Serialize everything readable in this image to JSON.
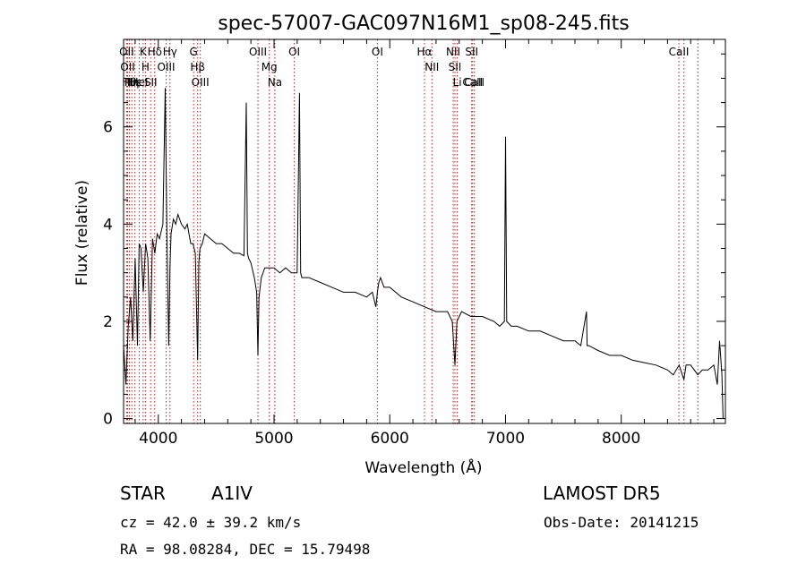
{
  "chart_data": {
    "type": "line",
    "title": "spec-57007-GAC097N16M1_sp08-245.fits",
    "xlabel": "Wavelength (Å)",
    "ylabel": "Flux (relative)",
    "xlim": [
      3700,
      8900
    ],
    "ylim": [
      -0.1,
      7.8
    ],
    "x_ticks": [
      4000,
      5000,
      6000,
      7000,
      8000
    ],
    "x_tick_labels": [
      "4000",
      "5000",
      "6000",
      "7000",
      "8000"
    ],
    "y_ticks": [
      0,
      2,
      4,
      6
    ],
    "y_tick_labels": [
      "0",
      "2",
      "4",
      "6"
    ],
    "grid": false,
    "series": [
      {
        "x": [
          3700,
          3720,
          3740,
          3760,
          3780,
          3800,
          3820,
          3835,
          3850,
          3870,
          3890,
          3910,
          3930,
          3950,
          3970,
          3990,
          4010,
          4040,
          4060,
          4075,
          4090,
          4101,
          4110,
          4130,
          4150,
          4170,
          4200,
          4230,
          4250,
          4280,
          4300,
          4320,
          4340,
          4350,
          4360,
          4380,
          4400,
          4450,
          4500,
          4550,
          4600,
          4650,
          4700,
          4740,
          4760,
          4770,
          4780,
          4800,
          4830,
          4850,
          4861,
          4870,
          4890,
          4920,
          4960,
          5000,
          5050,
          5100,
          5150,
          5200,
          5220,
          5230,
          5240,
          5300,
          5400,
          5500,
          5600,
          5700,
          5800,
          5850,
          5880,
          5893,
          5905,
          5920,
          5950,
          6000,
          6100,
          6200,
          6300,
          6400,
          6500,
          6540,
          6563,
          6580,
          6620,
          6700,
          6800,
          6900,
          6950,
          6990,
          7000,
          7010,
          7050,
          7100,
          7200,
          7300,
          7400,
          7500,
          7600,
          7650,
          7700,
          7705,
          7720,
          7800,
          7900,
          8000,
          8100,
          8200,
          8300,
          8400,
          8450,
          8500,
          8542,
          8560,
          8600,
          8662,
          8700,
          8750,
          8800,
          8830,
          8850,
          8870,
          8880
        ],
        "y": [
          1.5,
          0.7,
          1.9,
          2.5,
          1.6,
          3.3,
          1.5,
          3.6,
          3.5,
          2.6,
          3.6,
          3.3,
          1.6,
          3.7,
          3.4,
          3.8,
          3.7,
          4.0,
          6.8,
          3.6,
          1.5,
          3.1,
          3.8,
          4.1,
          4.0,
          4.2,
          4.0,
          3.9,
          4.0,
          3.6,
          3.6,
          3.4,
          1.2,
          3.2,
          3.5,
          3.6,
          3.8,
          3.7,
          3.6,
          3.6,
          3.5,
          3.4,
          3.4,
          3.35,
          6.5,
          3.4,
          3.3,
          3.2,
          2.9,
          2.6,
          1.3,
          2.5,
          2.9,
          3.1,
          3.1,
          3.1,
          3.0,
          3.1,
          3.0,
          3.0,
          6.7,
          3.0,
          2.9,
          2.9,
          2.8,
          2.7,
          2.6,
          2.6,
          2.5,
          2.6,
          2.3,
          2.6,
          2.8,
          2.9,
          2.7,
          2.7,
          2.5,
          2.4,
          2.3,
          2.2,
          2.2,
          2.0,
          1.1,
          2.0,
          2.2,
          2.1,
          2.1,
          2.0,
          1.9,
          2.0,
          5.8,
          2.0,
          1.9,
          1.9,
          1.8,
          1.8,
          1.7,
          1.6,
          1.6,
          1.5,
          2.2,
          1.5,
          1.5,
          1.4,
          1.3,
          1.3,
          1.2,
          1.15,
          1.1,
          1.0,
          0.9,
          1.1,
          0.8,
          1.1,
          1.1,
          0.9,
          1.0,
          1.0,
          1.1,
          0.7,
          1.6,
          0.9,
          0.0
        ]
      }
    ],
    "lines": [
      {
        "x": 3726,
        "labels": [
          "OII"
        ]
      },
      {
        "x": 3735,
        "labels": [
          "OII"
        ]
      },
      {
        "x": 3750,
        "labels": [
          "Hθ"
        ]
      },
      {
        "x": 3771,
        "labels": [
          "Hη"
        ]
      },
      {
        "x": 3798,
        "labels": [
          "Hε"
        ]
      },
      {
        "x": 3835,
        "labels": [
          "HeI"
        ]
      },
      {
        "x": 3869,
        "labels": [
          "K"
        ]
      },
      {
        "x": 3889,
        "labels": [
          "H"
        ]
      },
      {
        "x": 3934,
        "labels": [
          "SII"
        ]
      },
      {
        "x": 3969,
        "labels": [
          "Hδ"
        ]
      },
      {
        "x": 4068,
        "labels": [
          "OIII"
        ]
      },
      {
        "x": 4101,
        "labels": [
          "Hγ"
        ]
      },
      {
        "x": 4305,
        "labels": [
          "G"
        ]
      },
      {
        "x": 4340,
        "labels": [
          "Hβ"
        ]
      },
      {
        "x": 4363,
        "labels": [
          "OIII"
        ]
      },
      {
        "x": 4861,
        "labels": [
          "OIII"
        ]
      },
      {
        "x": 4959,
        "labels": [
          "Mg"
        ]
      },
      {
        "x": 5007,
        "labels": [
          "Na"
        ]
      },
      {
        "x": 5175,
        "labels": [
          "OI"
        ]
      },
      {
        "x": 5893,
        "labels": [
          "OI"
        ]
      },
      {
        "x": 6300,
        "labels": [
          "Hα"
        ]
      },
      {
        "x": 6364,
        "labels": [
          "NII"
        ]
      },
      {
        "x": 6548,
        "labels": [
          "NII"
        ]
      },
      {
        "x": 6563,
        "labels": [
          "SII"
        ]
      },
      {
        "x": 6583,
        "labels": [
          "Li"
        ]
      },
      {
        "x": 6708,
        "labels": [
          "SII"
        ]
      },
      {
        "x": 6716,
        "labels": [
          "CaII"
        ]
      },
      {
        "x": 6731,
        "labels": [
          "CaII"
        ]
      },
      {
        "x": 8498,
        "labels": [
          "CaII"
        ]
      },
      {
        "x": 8542,
        "labels": []
      },
      {
        "x": 8662,
        "labels": []
      }
    ]
  },
  "info": {
    "class_label": "STAR",
    "subclass": "A1IV",
    "survey": "LAMOST DR5",
    "redshift_line": "cz = 42.0 ± 39.2 km/s",
    "obs_date": "Obs-Date: 20141215",
    "coords": "RA =  98.08284, DEC =  15.79498"
  }
}
